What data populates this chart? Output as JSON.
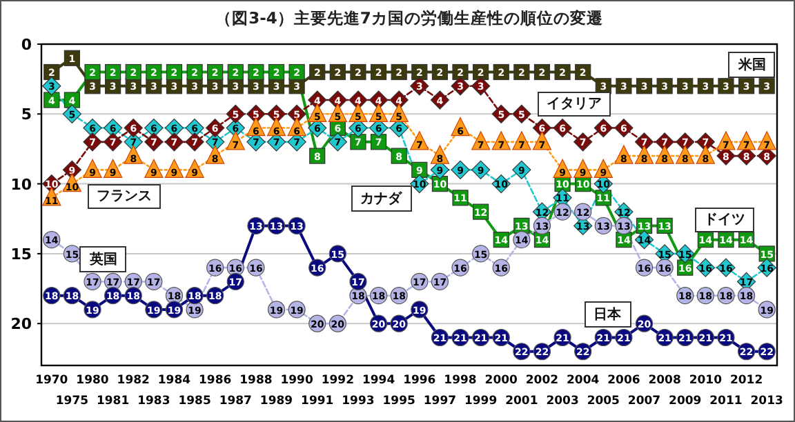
{
  "chart_data": {
    "type": "line",
    "title": "（図3-4）主要先進7カ国の労働生産性の順位の変遷",
    "categories": [
      "1970",
      "1975",
      "1980",
      "1981",
      "1982",
      "1983",
      "1984",
      "1985",
      "1986",
      "1987",
      "1988",
      "1989",
      "1990",
      "1991",
      "1992",
      "1993",
      "1994",
      "1995",
      "1996",
      "1997",
      "1998",
      "1999",
      "2000",
      "2001",
      "2002",
      "2003",
      "2004",
      "2005",
      "2006",
      "2007",
      "2008",
      "2009",
      "2010",
      "2011",
      "2012",
      "2013"
    ],
    "ylim": [
      23,
      0
    ],
    "yticks": [
      0,
      5,
      10,
      15,
      20
    ],
    "grid": "y",
    "data_labels": true,
    "series": [
      {
        "name": "米国",
        "color": "#3d3a10",
        "marker": "square",
        "line_style": "solid",
        "values": [
          2,
          1,
          3,
          3,
          3,
          3,
          3,
          3,
          3,
          3,
          3,
          3,
          3,
          2,
          2,
          2,
          2,
          2,
          2,
          2,
          2,
          2,
          2,
          2,
          2,
          2,
          2,
          3,
          3,
          3,
          3,
          3,
          3,
          3,
          3,
          3
        ]
      },
      {
        "name": "ドイツ",
        "color": "#119911",
        "marker": "square",
        "line_style": "solid",
        "values": [
          4,
          4,
          2,
          2,
          2,
          2,
          2,
          2,
          2,
          2,
          2,
          2,
          2,
          8,
          6,
          7,
          7,
          8,
          9,
          10,
          11,
          12,
          14,
          13,
          14,
          10,
          10,
          11,
          14,
          13,
          13,
          16,
          14,
          14,
          14,
          15
        ]
      },
      {
        "name": "カナダ",
        "color": "#22c8d0",
        "marker": "diamond",
        "line_style": "dashed",
        "values": [
          3,
          5,
          6,
          6,
          7,
          6,
          6,
          6,
          7,
          6,
          7,
          7,
          7,
          6,
          7,
          6,
          6,
          6,
          10,
          9,
          9,
          9,
          10,
          9,
          12,
          11,
          13,
          10,
          12,
          14,
          15,
          15,
          16,
          16,
          17,
          16
        ]
      },
      {
        "name": "イタリア",
        "color": "#7a0a0a",
        "marker": "diamond",
        "line_style": "dashed",
        "values": [
          10,
          9,
          7,
          7,
          6,
          7,
          7,
          7,
          6,
          5,
          5,
          5,
          5,
          4,
          4,
          4,
          4,
          4,
          3,
          4,
          3,
          3,
          5,
          5,
          6,
          6,
          7,
          6,
          6,
          7,
          7,
          7,
          7,
          8,
          8,
          8
        ]
      },
      {
        "name": "フランス",
        "color": "#ff9a1a",
        "marker": "triangle",
        "line_style": "dotted",
        "values": [
          11,
          10,
          9,
          9,
          8,
          9,
          9,
          9,
          8,
          7,
          6,
          6,
          6,
          5,
          5,
          5,
          5,
          5,
          7,
          8,
          6,
          7,
          7,
          7,
          7,
          9,
          9,
          9,
          8,
          8,
          8,
          8,
          8,
          7,
          7,
          7
        ]
      },
      {
        "name": "英国",
        "color": "#b4b4e6",
        "marker": "circle",
        "line_style": "dashed",
        "values": [
          14,
          15,
          17,
          17,
          17,
          17,
          18,
          19,
          16,
          16,
          16,
          19,
          19,
          20,
          20,
          18,
          18,
          18,
          17,
          17,
          16,
          15,
          16,
          14,
          13,
          12,
          12,
          13,
          13,
          16,
          16,
          18,
          18,
          18,
          18,
          19
        ]
      },
      {
        "name": "日本",
        "color": "#0a0a80",
        "marker": "circle",
        "line_style": "solid",
        "values": [
          18,
          18,
          19,
          18,
          18,
          19,
          19,
          18,
          18,
          17,
          13,
          13,
          13,
          16,
          15,
          17,
          20,
          20,
          19,
          21,
          21,
          21,
          21,
          22,
          22,
          21,
          22,
          21,
          21,
          20,
          21,
          21,
          21,
          21,
          22,
          22
        ]
      }
    ]
  }
}
